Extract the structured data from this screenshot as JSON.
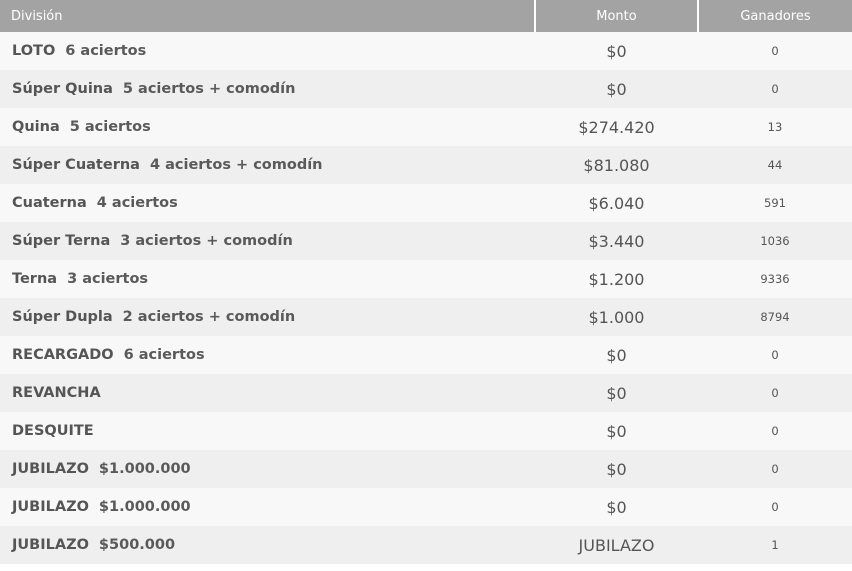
{
  "header": {
    "division": "División",
    "monto": "Monto",
    "ganadores": "Ganadores"
  },
  "rows": [
    {
      "label": "LOTO",
      "detail": "6 aciertos",
      "monto": "$0",
      "ganadores": "0"
    },
    {
      "label": "Súper Quina",
      "detail": "5 aciertos + comodín",
      "monto": "$0",
      "ganadores": "0"
    },
    {
      "label": "Quina",
      "detail": "5 aciertos",
      "monto": "$274.420",
      "ganadores": "13"
    },
    {
      "label": "Súper Cuaterna",
      "detail": "4 aciertos + comodín",
      "monto": "$81.080",
      "ganadores": "44"
    },
    {
      "label": "Cuaterna",
      "detail": "4 aciertos",
      "monto": "$6.040",
      "ganadores": "591"
    },
    {
      "label": "Súper Terna",
      "detail": "3 aciertos + comodín",
      "monto": "$3.440",
      "ganadores": "1036"
    },
    {
      "label": "Terna",
      "detail": "3 aciertos",
      "monto": "$1.200",
      "ganadores": "9336"
    },
    {
      "label": "Súper Dupla",
      "detail": "2 aciertos + comodín",
      "monto": "$1.000",
      "ganadores": "8794"
    },
    {
      "label": "RECARGADO",
      "detail": "6 aciertos",
      "monto": "$0",
      "ganadores": "0"
    },
    {
      "label": "REVANCHA",
      "detail": "",
      "monto": "$0",
      "ganadores": "0"
    },
    {
      "label": "DESQUITE",
      "detail": "",
      "monto": "$0",
      "ganadores": "0"
    },
    {
      "label": "JUBILAZO",
      "detail": "$1.000.000",
      "monto": "$0",
      "ganadores": "0"
    },
    {
      "label": "JUBILAZO",
      "detail": "$1.000.000",
      "monto": "$0",
      "ganadores": "0"
    },
    {
      "label": "JUBILAZO",
      "detail": "$500.000",
      "monto": "JUBILAZO",
      "ganadores": "1"
    }
  ],
  "colors": {
    "header_bg": "#a3a3a3",
    "row_light": "#f8f8f8",
    "row_dark": "#efefef",
    "text": "#555555"
  }
}
